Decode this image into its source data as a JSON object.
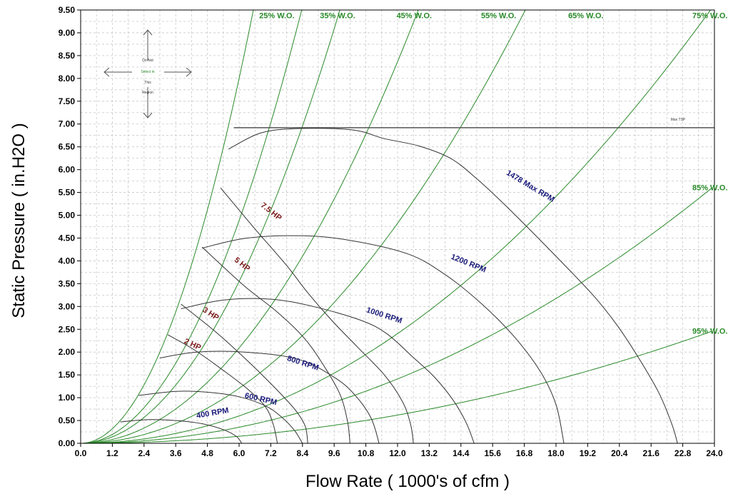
{
  "chart_data": {
    "type": "line",
    "xlabel": "Flow Rate ( 1000's of cfm )",
    "ylabel": "Static Pressure ( in.H2O )",
    "xlim": [
      0,
      24
    ],
    "ylim": [
      0,
      9.5
    ],
    "x_ticks": [
      "0.0",
      "1.2",
      "2.4",
      "3.6",
      "4.8",
      "6.0",
      "7.2",
      "8.4",
      "9.6",
      "10.8",
      "12.0",
      "13.2",
      "14.4",
      "15.6",
      "16.8",
      "18.0",
      "19.2",
      "20.4",
      "21.6",
      "22.8",
      "24.0"
    ],
    "y_ticks": [
      "0.00",
      "0.50",
      "1.00",
      "1.50",
      "2.00",
      "2.50",
      "3.00",
      "3.50",
      "4.00",
      "4.50",
      "5.00",
      "5.50",
      "6.00",
      "6.50",
      "7.00",
      "7.50",
      "8.00",
      "8.50",
      "9.00",
      "9.50"
    ],
    "grid": true,
    "colors": {
      "wide_open": "#2a8a2a",
      "rpm": "#1a1a7a",
      "hp": "#7a1a1a",
      "curve": "#333333"
    },
    "wide_open_lines": [
      {
        "label": "25% W.O.",
        "k": 0.2222,
        "label_x": 8.1,
        "label_y": 9.32
      },
      {
        "label": "35% W.O.",
        "k": 0.1356,
        "label_x": 10.4,
        "label_y": 9.32
      },
      {
        "label": "45% W.O.",
        "k": 0.0986,
        "label_x": 13.3,
        "label_y": 9.32
      },
      {
        "label": "55% W.O.",
        "k": 0.0581,
        "label_x": 16.5,
        "label_y": 9.32
      },
      {
        "label": "65% W.O.",
        "k": 0.0335,
        "label_x": 19.8,
        "label_y": 9.32
      },
      {
        "label": "75% W.O.",
        "k": 0.0167,
        "label_x": 24.5,
        "label_y": 9.32
      },
      {
        "label": "85% W.O.",
        "k": 0.0098,
        "label_x": 24.5,
        "label_y": 5.55
      },
      {
        "label": "95% W.O.",
        "k": 0.0043,
        "label_x": 24.5,
        "label_y": 2.4
      }
    ],
    "max_tsp": {
      "label": "Max TSP",
      "y": 6.92,
      "x_start": 5.8
    },
    "rpm_series": [
      {
        "name": "400 RPM",
        "points": [
          [
            1.5,
            0.47
          ],
          [
            2.6,
            0.52
          ],
          [
            3.6,
            0.5
          ],
          [
            4.6,
            0.43
          ],
          [
            5.4,
            0.3
          ],
          [
            5.9,
            0.15
          ],
          [
            6.1,
            0.0
          ]
        ]
      },
      {
        "name": "600 RPM",
        "points": [
          [
            2.2,
            1.05
          ],
          [
            3.6,
            1.14
          ],
          [
            4.8,
            1.12
          ],
          [
            6.0,
            1.02
          ],
          [
            7.0,
            0.82
          ],
          [
            7.6,
            0.58
          ],
          [
            8.1,
            0.28
          ],
          [
            8.4,
            0.0
          ]
        ]
      },
      {
        "name": "800 RPM",
        "points": [
          [
            3.0,
            1.87
          ],
          [
            4.4,
            2.0
          ],
          [
            6.2,
            2.0
          ],
          [
            8.2,
            1.85
          ],
          [
            9.6,
            1.45
          ],
          [
            10.4,
            1.05
          ],
          [
            11.0,
            0.55
          ],
          [
            11.3,
            0.0
          ]
        ]
      },
      {
        "name": "1000 RPM",
        "points": [
          [
            3.8,
            2.95
          ],
          [
            5.4,
            3.14
          ],
          [
            7.2,
            3.16
          ],
          [
            8.8,
            3.0
          ],
          [
            10.6,
            2.7
          ],
          [
            11.6,
            2.4
          ],
          [
            12.6,
            1.88
          ],
          [
            13.4,
            1.45
          ],
          [
            14.1,
            0.95
          ],
          [
            14.6,
            0.45
          ],
          [
            14.9,
            0.0
          ]
        ]
      },
      {
        "name": "1200 RPM",
        "points": [
          [
            4.6,
            4.28
          ],
          [
            6.3,
            4.5
          ],
          [
            8.4,
            4.55
          ],
          [
            10.2,
            4.45
          ],
          [
            12.4,
            4.15
          ],
          [
            13.8,
            3.7
          ],
          [
            15.2,
            3.05
          ],
          [
            16.4,
            2.35
          ],
          [
            17.4,
            1.58
          ],
          [
            18.0,
            0.85
          ],
          [
            18.3,
            0.0
          ]
        ]
      },
      {
        "name": "1478 Max RPM",
        "points": [
          [
            5.6,
            6.45
          ],
          [
            6.8,
            6.8
          ],
          [
            8.2,
            6.9
          ],
          [
            10.3,
            6.87
          ],
          [
            11.5,
            6.68
          ],
          [
            12.8,
            6.52
          ],
          [
            14.0,
            6.25
          ],
          [
            15.0,
            5.8
          ],
          [
            16.2,
            5.15
          ],
          [
            18.0,
            4.1
          ],
          [
            19.4,
            3.25
          ],
          [
            20.3,
            2.6
          ],
          [
            21.1,
            1.9
          ],
          [
            21.9,
            1.1
          ],
          [
            22.4,
            0.4
          ],
          [
            22.6,
            0.0
          ]
        ]
      }
    ],
    "hp_series": [
      {
        "name": "2 HP",
        "points": [
          [
            3.3,
            2.38
          ],
          [
            4.3,
            2.05
          ],
          [
            5.4,
            1.6
          ],
          [
            6.3,
            1.2
          ],
          [
            7.0,
            0.8
          ],
          [
            7.3,
            0.4
          ],
          [
            7.45,
            0.0
          ]
        ]
      },
      {
        "name": "3 HP",
        "points": [
          [
            3.8,
            3.05
          ],
          [
            5.1,
            2.45
          ],
          [
            6.3,
            1.82
          ],
          [
            7.3,
            1.25
          ],
          [
            8.1,
            0.75
          ],
          [
            8.5,
            0.38
          ],
          [
            8.6,
            0.0
          ]
        ]
      },
      {
        "name": "5 HP",
        "points": [
          [
            4.6,
            4.3
          ],
          [
            6.2,
            3.45
          ],
          [
            7.4,
            2.9
          ],
          [
            8.4,
            2.35
          ],
          [
            9.1,
            1.8
          ],
          [
            9.8,
            1.1
          ],
          [
            10.1,
            0.5
          ],
          [
            10.2,
            0.0
          ]
        ]
      },
      {
        "name": "7.5 HP",
        "points": [
          [
            5.3,
            5.6
          ],
          [
            6.6,
            4.7
          ],
          [
            7.8,
            3.9
          ],
          [
            8.6,
            3.3
          ],
          [
            9.5,
            2.7
          ],
          [
            10.5,
            2.1
          ],
          [
            11.5,
            1.5
          ],
          [
            12.2,
            0.9
          ],
          [
            12.5,
            0.4
          ],
          [
            12.6,
            0.0
          ]
        ]
      }
    ],
    "rpm_labels": [
      {
        "text": "400 RPM",
        "x": 4.4,
        "y": 0.55,
        "angle": -10
      },
      {
        "text": "600 RPM",
        "x": 6.2,
        "y": 1.0,
        "angle": 13
      },
      {
        "text": "800 RPM",
        "x": 7.8,
        "y": 1.82,
        "angle": 18
      },
      {
        "text": "1000 RPM",
        "x": 10.8,
        "y": 2.88,
        "angle": 18
      },
      {
        "text": "1200 RPM",
        "x": 14.0,
        "y": 4.05,
        "angle": 22
      },
      {
        "text": "1478 Max RPM",
        "x": 16.1,
        "y": 5.9,
        "angle": 31
      }
    ],
    "hp_labels": [
      {
        "text": "2 HP",
        "x": 3.9,
        "y": 2.2,
        "angle": 25
      },
      {
        "text": "3 HP",
        "x": 4.6,
        "y": 2.9,
        "angle": 33
      },
      {
        "text": "5 HP",
        "x": 5.8,
        "y": 4.0,
        "angle": 38
      },
      {
        "text": "7.5 HP",
        "x": 6.8,
        "y": 5.2,
        "angle": 38
      }
    ],
    "no_select_note": [
      "Do Not",
      "Select in",
      "This",
      "Region"
    ]
  }
}
